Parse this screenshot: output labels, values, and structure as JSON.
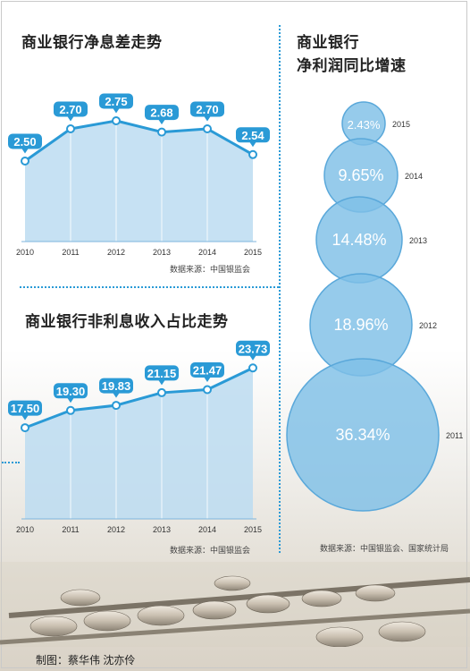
{
  "chart_data": [
    {
      "type": "area",
      "title": "商业银行净息差走势",
      "categories": [
        "2010",
        "2011",
        "2012",
        "2013",
        "2014",
        "2015"
      ],
      "values": [
        2.5,
        2.7,
        2.75,
        2.68,
        2.7,
        2.54
      ],
      "labels": [
        "2.50",
        "2.70",
        "2.75",
        "2.68",
        "2.70",
        "2.54"
      ],
      "ylim": [
        2.0,
        2.85
      ],
      "source": "数据来源：中国银监会",
      "color": "#2a9ad6"
    },
    {
      "type": "area",
      "title": "商业银行非利息收入占比走势",
      "categories": [
        "2010",
        "2011",
        "2012",
        "2013",
        "2014",
        "2015"
      ],
      "values": [
        17.5,
        19.3,
        19.83,
        21.15,
        21.47,
        23.73
      ],
      "labels": [
        "17.50",
        "19.30",
        "19.83",
        "21.15",
        "21.47",
        "23.73"
      ],
      "ylim": [
        8,
        24.5
      ],
      "source": "数据来源：中国银监会",
      "color": "#2a9ad6"
    },
    {
      "type": "bubble",
      "title": [
        "商业银行",
        "净利润同比增速"
      ],
      "categories": [
        "2015",
        "2014",
        "2013",
        "2012",
        "2011"
      ],
      "values": [
        2.43,
        9.65,
        14.48,
        18.96,
        36.34
      ],
      "labels": [
        "2.43%",
        "9.65%",
        "14.48%",
        "18.96%",
        "36.34%"
      ],
      "source": "数据来源：中国银监会、国家统计局",
      "color": "#7fbfe6"
    }
  ],
  "credit": "制图：蔡华伟  沈亦伶"
}
